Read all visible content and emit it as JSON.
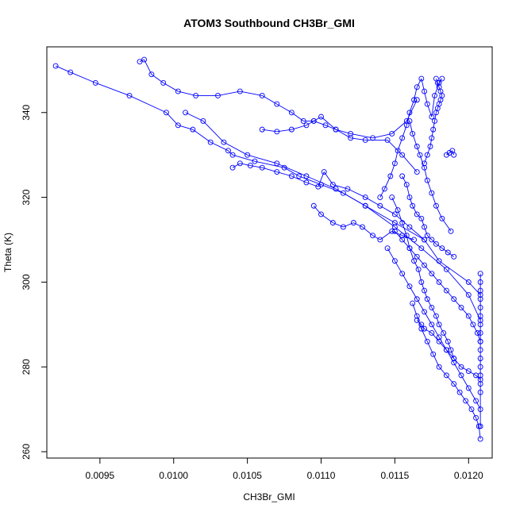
{
  "chart_data": {
    "type": "scatter",
    "title": "ATOM3 Southbound CH3Br_GMI",
    "xlabel": "CH3Br_GMI",
    "ylabel": "Theta (K)",
    "xlim": [
      0.00914,
      0.01216
    ],
    "ylim": [
      258.5,
      355.5
    ],
    "xticks": [
      {
        "value": 0.0095,
        "label": "0.0095"
      },
      {
        "value": 0.01,
        "label": "0.0100"
      },
      {
        "value": 0.0105,
        "label": "0.0105"
      },
      {
        "value": 0.011,
        "label": "0.0110"
      },
      {
        "value": 0.0115,
        "label": "0.0115"
      },
      {
        "value": 0.012,
        "label": "0.0120"
      }
    ],
    "yticks": [
      {
        "value": 260,
        "label": "260"
      },
      {
        "value": 280,
        "label": "280"
      },
      {
        "value": 300,
        "label": "300"
      },
      {
        "value": 320,
        "label": "320"
      },
      {
        "value": 340,
        "label": "340"
      }
    ],
    "style": {
      "color": "#0000ff",
      "marker": "open-circle",
      "connect": "line-segments",
      "grid": false
    },
    "series": [
      {
        "x": [
          0.0092,
          0.0093,
          0.00947,
          0.0097,
          0.00995,
          0.01003,
          0.01013,
          0.01025,
          0.01037,
          0.0104,
          0.01055,
          0.01075,
          0.01085,
          0.011,
          0.01115,
          0.0113,
          0.0115,
          0.0117,
          0.0118,
          0.012,
          0.01208
        ],
        "y": [
          351,
          349.5,
          347,
          344,
          340,
          337,
          336,
          333,
          331,
          330,
          328.5,
          327,
          325,
          323,
          321,
          318,
          314,
          310,
          305,
          300,
          297
        ]
      },
      {
        "x": [
          0.00977,
          0.0098,
          0.00985,
          0.00993,
          0.01003,
          0.01015,
          0.0103,
          0.01045,
          0.0106,
          0.0107,
          0.0108,
          0.01088,
          0.01095,
          0.01103,
          0.0111,
          0.0112,
          0.01135,
          0.01148,
          0.01158,
          0.01165
        ],
        "y": [
          352,
          352.5,
          349,
          347,
          345,
          344,
          344,
          345,
          344,
          342,
          340,
          338,
          338,
          337,
          336,
          335,
          334,
          335,
          338,
          343
        ]
      },
      {
        "x": [
          0.0104,
          0.01045,
          0.01052,
          0.0106,
          0.0107,
          0.0108,
          0.0109,
          0.01098,
          0.01102,
          0.01108,
          0.01118,
          0.0113,
          0.0114,
          0.0115,
          0.0116,
          0.0117
        ],
        "y": [
          327,
          328,
          327.5,
          327,
          326,
          325,
          323.5,
          322.5,
          326,
          323,
          322,
          320,
          318,
          316,
          313,
          310
        ]
      },
      {
        "x": [
          0.0106,
          0.0107,
          0.0108,
          0.0109,
          0.01095,
          0.011,
          0.0111,
          0.0112,
          0.0113,
          0.01145,
          0.01155,
          0.01165
        ],
        "y": [
          336,
          335.5,
          336,
          337,
          338,
          339,
          336,
          334,
          333.5,
          333.5,
          330,
          326
        ]
      },
      {
        "x": [
          0.01008,
          0.0102,
          0.01034,
          0.0105,
          0.0107,
          0.0109,
          0.0111,
          0.0113,
          0.0115,
          0.01168,
          0.01185,
          0.012,
          0.01208
        ],
        "y": [
          340,
          338,
          333,
          330,
          328,
          325,
          322,
          318,
          313,
          308,
          303,
          297,
          291
        ]
      },
      {
        "x": [
          0.01095,
          0.011,
          0.01108,
          0.01115,
          0.01122,
          0.01128,
          0.01135,
          0.0114,
          0.01148,
          0.01155,
          0.01163
        ],
        "y": [
          318,
          316,
          314,
          313,
          314,
          313,
          311,
          310,
          312,
          311,
          310
        ]
      },
      {
        "x": [
          0.0114,
          0.01143,
          0.01147,
          0.0115,
          0.01152,
          0.01155,
          0.01158,
          0.0116,
          0.01163,
          0.01165,
          0.01168,
          0.0117,
          0.01172,
          0.01175,
          0.01177,
          0.0118,
          0.01182
        ],
        "y": [
          320,
          322,
          325,
          328,
          331,
          334,
          337,
          340,
          343,
          346,
          348,
          345,
          342,
          339,
          344,
          347,
          348
        ]
      },
      {
        "x": [
          0.01178,
          0.01179,
          0.0118,
          0.01181,
          0.01182,
          0.01181,
          0.0118,
          0.01179,
          0.01178,
          0.01177,
          0.01176,
          0.01175,
          0.01174,
          0.01172,
          0.0117
        ],
        "y": [
          348,
          347,
          346,
          345,
          344,
          343,
          342,
          341,
          340,
          338,
          336,
          334,
          332,
          330,
          328
        ]
      },
      {
        "x": [
          0.01148,
          0.01152,
          0.01155,
          0.01158,
          0.0116,
          0.01163,
          0.01166,
          0.01168,
          0.0117,
          0.01172,
          0.01175,
          0.01178,
          0.0118,
          0.01183,
          0.01186,
          0.01188,
          0.0119
        ],
        "y": [
          320,
          317,
          314,
          311,
          308,
          305,
          303,
          300,
          298,
          296,
          294,
          292,
          290,
          288,
          286,
          284,
          282
        ]
      },
      {
        "x": [
          0.0115,
          0.01155,
          0.0116,
          0.01165,
          0.0117,
          0.01175,
          0.0118,
          0.01185,
          0.0119,
          0.01195,
          0.012,
          0.01203,
          0.01206,
          0.01208
        ],
        "y": [
          312,
          310,
          308,
          306,
          304,
          302,
          300,
          298,
          296,
          294,
          292,
          290,
          288,
          286
        ]
      },
      {
        "x": [
          0.01145,
          0.0115,
          0.01155,
          0.0116,
          0.01165,
          0.0117,
          0.01175,
          0.0118,
          0.01185,
          0.0119,
          0.01195,
          0.012,
          0.01205,
          0.01208
        ],
        "y": [
          308,
          305,
          302,
          299,
          296,
          293,
          290,
          287,
          284,
          281,
          278,
          275,
          272,
          270
        ]
      },
      {
        "x": [
          0.01162,
          0.01165,
          0.01168,
          0.01172,
          0.01176,
          0.0118,
          0.01185,
          0.0119,
          0.01194,
          0.01198,
          0.01202,
          0.01205,
          0.01207,
          0.01208
        ],
        "y": [
          295,
          292,
          289,
          286,
          283,
          280,
          278,
          276,
          274,
          272,
          270,
          268,
          266,
          263
        ]
      },
      {
        "x": [
          0.01208,
          0.01208,
          0.01208,
          0.01208,
          0.01208,
          0.01208,
          0.01208,
          0.01208,
          0.01208,
          0.01208,
          0.01208,
          0.01208,
          0.01208,
          0.01208,
          0.01208,
          0.01208
        ],
        "y": [
          302,
          300,
          298,
          296,
          294,
          292,
          290,
          288,
          286,
          284,
          282,
          280,
          278,
          276,
          274,
          266
        ]
      },
      {
        "x": [
          0.01155,
          0.01158,
          0.0116,
          0.01162,
          0.01165,
          0.01168,
          0.0117,
          0.01172,
          0.01175,
          0.01178,
          0.01182,
          0.01186,
          0.0119
        ],
        "y": [
          325,
          323,
          320,
          318,
          316,
          315,
          313,
          311,
          310,
          309,
          308,
          307,
          306
        ]
      },
      {
        "x": [
          0.0116,
          0.01162,
          0.01165,
          0.01167,
          0.0117,
          0.01172,
          0.01175,
          0.01178,
          0.01182,
          0.01188
        ],
        "y": [
          338,
          335,
          332,
          330,
          327,
          324,
          321,
          318,
          315,
          312
        ]
      },
      {
        "x": [
          0.01185,
          0.01187,
          0.01189,
          0.0119
        ],
        "y": [
          330,
          330.5,
          331,
          330
        ]
      },
      {
        "x": [
          0.01165,
          0.01168,
          0.0117,
          0.01175,
          0.0118,
          0.01185,
          0.0119,
          0.01195,
          0.012,
          0.01205,
          0.01208
        ],
        "y": [
          291,
          290,
          289,
          288,
          286,
          284,
          282,
          280,
          279,
          278,
          277
        ]
      }
    ]
  }
}
